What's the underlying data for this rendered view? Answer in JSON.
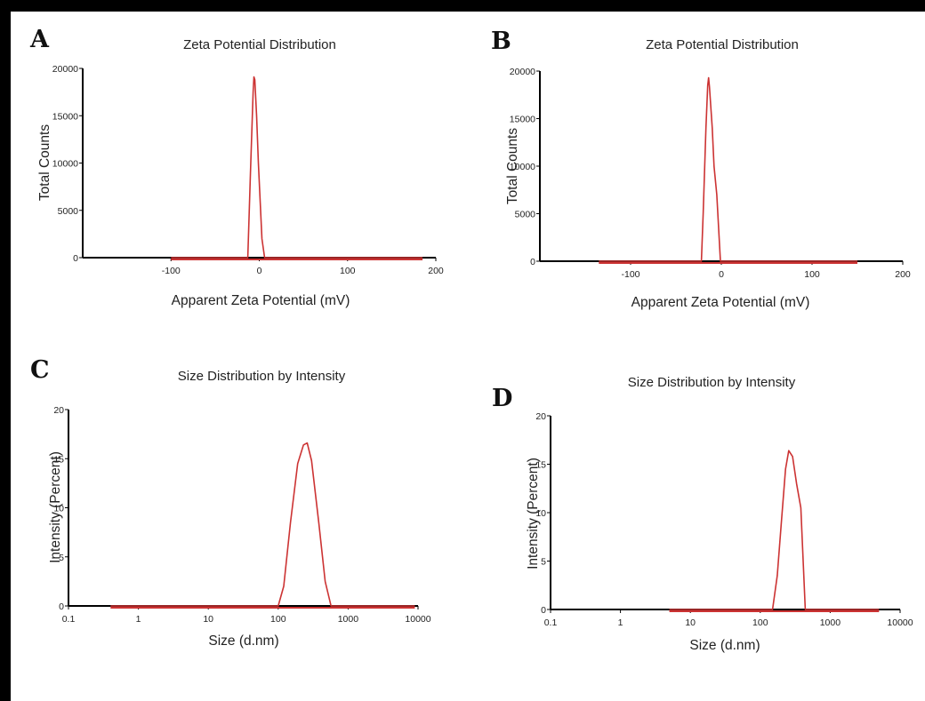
{
  "figure": {
    "background": "#ffffff",
    "frame_color": "#000000",
    "series_color": "#cc3333"
  },
  "chart_data": [
    {
      "panel": "A",
      "type": "line",
      "title": "Zeta Potential Distribution",
      "xlabel": "Apparent Zeta Potential (mV)",
      "ylabel": "Total Counts",
      "xscale": "linear",
      "xlim": [
        -200,
        200
      ],
      "ylim": [
        0,
        20000
      ],
      "xticks": [
        -100,
        0,
        100,
        200
      ],
      "xtick_labels": [
        "-100",
        "0",
        "100",
        "200"
      ],
      "yticks": [
        0,
        5000,
        10000,
        15000,
        20000
      ],
      "ytick_labels": [
        "0",
        "5000",
        "10000",
        "15000",
        "20000"
      ],
      "grid": false,
      "legend": "none",
      "series": [
        {
          "x": [
            -100,
            -13,
            -10,
            -7,
            -6,
            -5,
            -3,
            -1,
            1,
            3,
            6,
            185
          ],
          "y": [
            0,
            0,
            9000,
            17500,
            19100,
            18800,
            15000,
            10000,
            6000,
            2000,
            0,
            0
          ]
        }
      ]
    },
    {
      "panel": "B",
      "type": "line",
      "title": "Zeta Potential Distribution",
      "xlabel": "Apparent Zeta Potential (mV)",
      "ylabel": "Total Counts",
      "xscale": "linear",
      "xlim": [
        -200,
        200
      ],
      "ylim": [
        0,
        20000
      ],
      "xticks": [
        -100,
        0,
        100,
        200
      ],
      "xtick_labels": [
        "-100",
        "0",
        "100",
        "200"
      ],
      "yticks": [
        0,
        5000,
        10000,
        15000,
        20000
      ],
      "ytick_labels": [
        "0",
        "5000",
        "10000",
        "15000",
        "20000"
      ],
      "grid": false,
      "legend": "none",
      "series": [
        {
          "x": [
            -135,
            -22,
            -20,
            -17,
            -15,
            -14,
            -13,
            -10,
            -8,
            -5,
            -1,
            150
          ],
          "y": [
            0,
            0,
            5000,
            14000,
            18500,
            19300,
            18300,
            14000,
            10000,
            7000,
            0,
            0
          ]
        }
      ]
    },
    {
      "panel": "C",
      "type": "line",
      "title": "Size Distribution by Intensity",
      "xlabel": "Size (d.nm)",
      "ylabel": "Intensity (Percent)",
      "xscale": "log",
      "xlim": [
        0.1,
        10000
      ],
      "ylim": [
        0,
        20
      ],
      "xticks": [
        0.1,
        1,
        10,
        100,
        1000,
        10000
      ],
      "xtick_labels": [
        "0.1",
        "1",
        "10",
        "100",
        "1000",
        "10000"
      ],
      "yticks": [
        0,
        5,
        10,
        15,
        20
      ],
      "ytick_labels": [
        "0",
        "5",
        "10",
        "15",
        "20"
      ],
      "grid": false,
      "legend": "none",
      "series": [
        {
          "x": [
            0.4,
            100,
            120,
            150,
            190,
            230,
            260,
            300,
            380,
            470,
            570,
            9000
          ],
          "y": [
            0,
            0,
            2.0,
            8.5,
            14.5,
            16.4,
            16.6,
            14.8,
            8.5,
            2.5,
            0,
            0
          ]
        }
      ]
    },
    {
      "panel": "D",
      "type": "line",
      "title": "Size Distribution by Intensity",
      "xlabel": "Size (d.nm)",
      "ylabel": "Intensity (Percent)",
      "xscale": "log",
      "xlim": [
        0.1,
        10000
      ],
      "ylim": [
        0,
        20
      ],
      "xticks": [
        0.1,
        1,
        10,
        100,
        1000,
        10000
      ],
      "xtick_labels": [
        "0.1",
        "1",
        "10",
        "100",
        "1000",
        "10000"
      ],
      "yticks": [
        0,
        5,
        10,
        15,
        20
      ],
      "ytick_labels": [
        "0",
        "5",
        "10",
        "15",
        "20"
      ],
      "grid": false,
      "legend": "none",
      "series": [
        {
          "x": [
            5,
            150,
            175,
            200,
            230,
            255,
            290,
            330,
            380,
            440,
            5000
          ],
          "y": [
            0,
            0,
            3.5,
            9.0,
            14.5,
            16.4,
            15.8,
            13.0,
            10.5,
            0,
            0
          ]
        }
      ]
    }
  ]
}
